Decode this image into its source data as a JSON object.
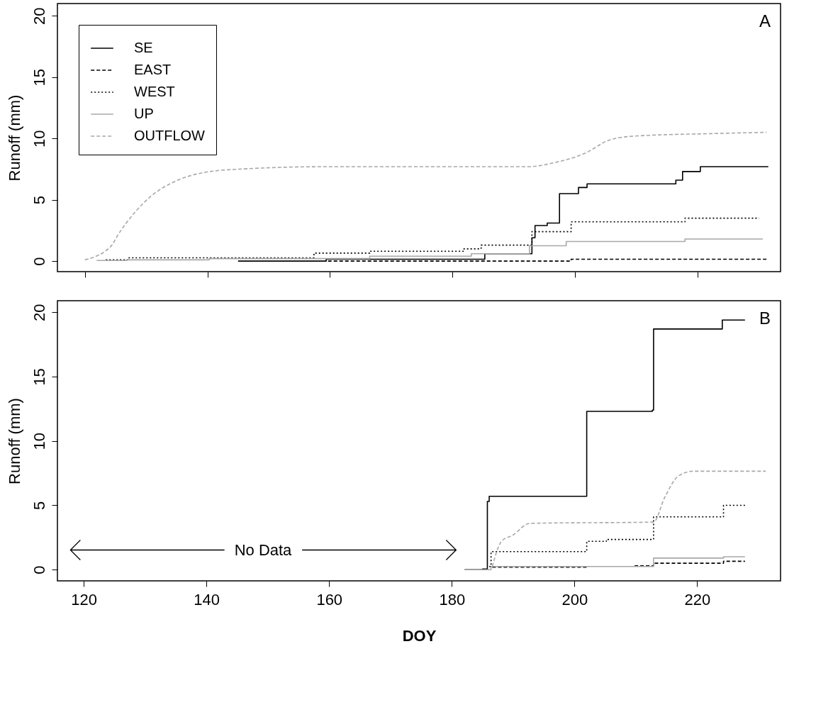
{
  "chart_data": [
    {
      "type": "step",
      "annotations": [
        "A"
      ],
      "ylabel": "Runoff (mm)",
      "xlim": [
        115.5,
        233.6
      ],
      "xticks": [
        120,
        140,
        160,
        180,
        200,
        220
      ],
      "ylim": [
        -0.86,
        21
      ],
      "yticks": [
        0,
        5,
        10,
        15,
        20
      ],
      "tick_labels": "y",
      "legend": "top left",
      "grid": false,
      "series": [
        {
          "name": "SE",
          "color": "#000000",
          "line_style": "solid",
          "x": [
            145,
            159.4,
            185.3,
            193,
            193.5,
            195.5,
            197.5,
            200.6,
            202,
            216.5,
            217.6,
            220.5,
            231.6
          ],
          "values": [
            0,
            0.15,
            0.6,
            1.9,
            2.9,
            3.1,
            5.5,
            6,
            6.3,
            6.6,
            7.3,
            7.7,
            7.7
          ]
        },
        {
          "name": "EAST",
          "color": "#000000",
          "line_style": "dashed",
          "x": [
            159.7,
            199.4,
            231.6
          ],
          "values": [
            0,
            0.15,
            0.15
          ]
        },
        {
          "name": "WEST",
          "color": "#000000",
          "line_style": "dotted",
          "x": [
            123.4,
            127,
            157.4,
            166.5,
            181.9,
            184.7,
            189.9,
            193,
            199.4,
            218,
            230.1
          ],
          "values": [
            0.1,
            0.27,
            0.65,
            0.8,
            1,
            1.3,
            1.3,
            2.4,
            3.2,
            3.5,
            3.5
          ]
        },
        {
          "name": "UP",
          "color": "#a8a8a8",
          "line_style": "solid",
          "x": [
            121.9,
            126.8,
            140.3,
            166.5,
            183.1,
            189.9,
            192.6,
            198.6,
            218,
            230.7
          ],
          "values": [
            0.05,
            0.1,
            0.2,
            0.4,
            0.6,
            0.6,
            1.25,
            1.6,
            1.8,
            1.8
          ]
        },
        {
          "name": "OUTFLOW",
          "type": "line",
          "color": "#a8a8a8",
          "line_style": "dashed",
          "x": [
            120,
            124.4,
            125.1,
            128.2,
            130.8,
            134.7,
            139.2,
            145.2,
            159.7,
            192.6,
            196.4,
            201.7,
            205.8,
            210,
            222.8,
            231.3
          ],
          "values": [
            0.1,
            1.3,
            1.9,
            4,
            5.3,
            6.5,
            7.2,
            7.5,
            7.7,
            7.7,
            8,
            8.8,
            9.9,
            10.2,
            10.4,
            10.5
          ]
        }
      ]
    },
    {
      "type": "step",
      "annotations": [
        "B",
        "No Data"
      ],
      "ylabel": "Runoff (mm)",
      "xlabel": "DOY",
      "xlim": [
        115.7,
        233.6
      ],
      "xticks": [
        120,
        140,
        160,
        180,
        200,
        220
      ],
      "ylim": [
        -0.87,
        20.9
      ],
      "yticks": [
        0,
        5,
        10,
        15,
        20
      ],
      "legend": "top left",
      "grid": false,
      "series": [
        {
          "name": "SE",
          "color": "#000000",
          "line_style": "solid",
          "x": [
            182.1,
            185,
            185.8,
            186.1,
            202,
            212.7,
            212.9,
            224.1,
            227.8
          ],
          "values": [
            0,
            0.05,
            5.3,
            5.7,
            12.3,
            12.4,
            18.7,
            19.4,
            19.4
          ]
        },
        {
          "name": "EAST",
          "color": "#000000",
          "line_style": "dashed",
          "x": [
            186.6,
            202,
            205,
            209.8,
            212.9,
            224.3,
            227.8
          ],
          "values": [
            0.2,
            0.2,
            null,
            0.3,
            0.5,
            0.65,
            0.65
          ]
        },
        {
          "name": "WEST",
          "color": "#000000",
          "line_style": "dotted",
          "x": [
            186.1,
            186.4,
            202,
            205.2,
            212.9,
            224.3,
            227.8
          ],
          "values": [
            0.25,
            1.4,
            2.2,
            2.35,
            4.1,
            5,
            5
          ]
        },
        {
          "name": "UP",
          "color": "#a8a8a8",
          "line_style": "solid",
          "x": [
            182.1,
            186.4,
            212.9,
            224.3,
            227.8
          ],
          "values": [
            0,
            0.25,
            0.9,
            1,
            1
          ]
        },
        {
          "name": "OUTFLOW",
          "type": "line",
          "color": "#a8a8a8",
          "line_style": "dashed",
          "x": [
            186.6,
            188.1,
            190,
            192.7,
            212.9,
            214.7,
            217,
            219.3,
            231.2
          ],
          "values": [
            0.25,
            2.2,
            2.7,
            3.6,
            3.7,
            5.6,
            7.3,
            7.65,
            7.65
          ]
        }
      ]
    }
  ]
}
